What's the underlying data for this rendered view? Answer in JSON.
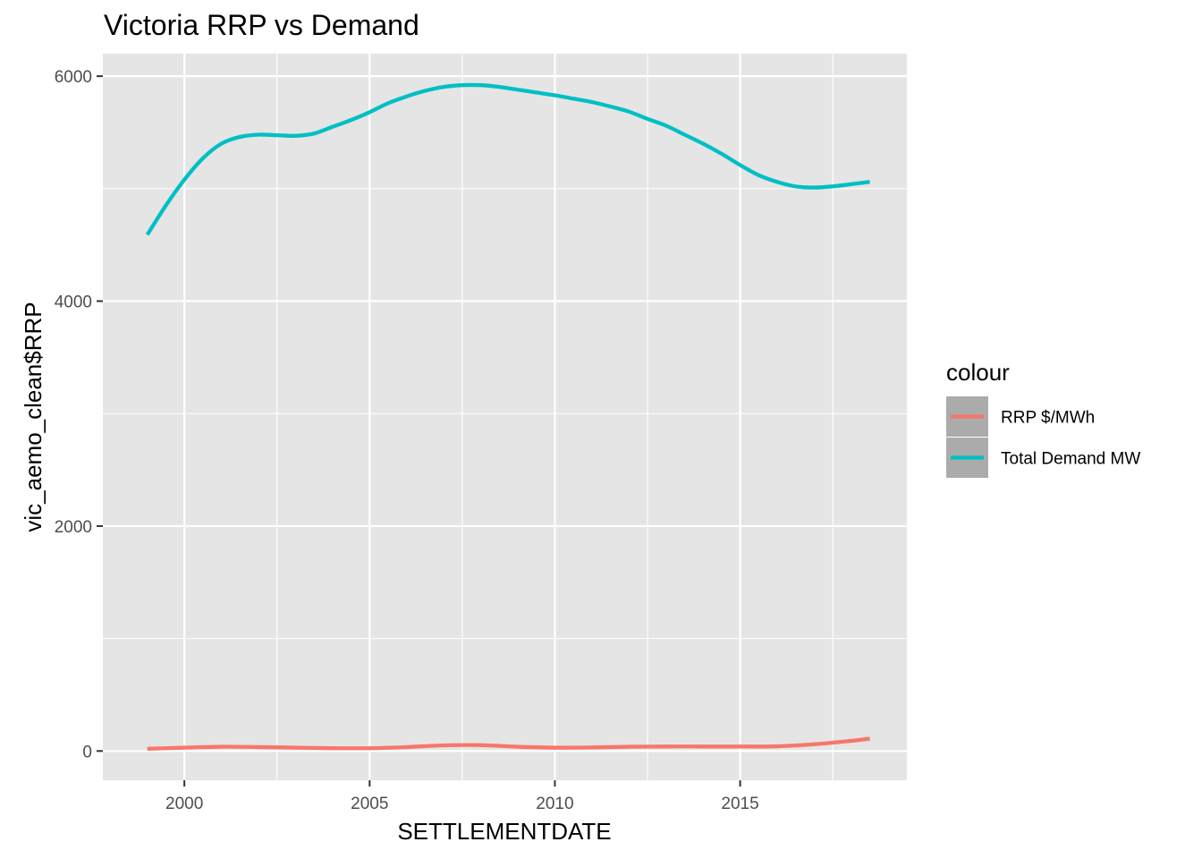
{
  "chart_data": {
    "type": "line",
    "title": "Victoria RRP vs Demand",
    "xlabel": "SETTLEMENTDATE",
    "ylabel": "vic_aemo_clean$RRP",
    "xlim": [
      1997.8,
      2019.5
    ],
    "ylim": [
      -260,
      6200
    ],
    "x_ticks": [
      2000,
      2005,
      2010,
      2015
    ],
    "x_tick_labels": [
      "2000",
      "2005",
      "2010",
      "2015"
    ],
    "x_minor_ticks": [
      2002.5,
      2007.5,
      2012.5,
      2017.5
    ],
    "y_ticks": [
      0,
      2000,
      4000,
      6000
    ],
    "y_tick_labels": [
      "0",
      "2000",
      "4000",
      "6000"
    ],
    "y_minor_ticks": [
      1000,
      3000,
      5000
    ],
    "grid": true,
    "panel_background": "#e5e5e5",
    "grid_color": "#ffffff",
    "legend": {
      "title": "colour",
      "position": "right",
      "key_background": "#ababab"
    },
    "series": [
      {
        "name": "RRP $/MWh",
        "color": "#f8766d",
        "x": [
          1999.0,
          2000.0,
          2001.0,
          2002.0,
          2003.0,
          2004.0,
          2005.0,
          2006.0,
          2007.0,
          2008.0,
          2009.0,
          2010.0,
          2011.0,
          2012.0,
          2013.0,
          2014.0,
          2015.0,
          2016.0,
          2017.0,
          2018.0,
          2018.5
        ],
        "y": [
          20,
          30,
          38,
          35,
          30,
          25,
          25,
          35,
          50,
          52,
          38,
          30,
          32,
          38,
          40,
          40,
          40,
          42,
          60,
          90,
          110
        ]
      },
      {
        "name": "Total Demand MW",
        "color": "#00bfc4",
        "x": [
          1999.0,
          1999.5,
          2000.0,
          2000.5,
          2001.0,
          2001.5,
          2002.0,
          2002.5,
          2003.0,
          2003.5,
          2004.0,
          2004.5,
          2005.0,
          2005.5,
          2006.0,
          2006.5,
          2007.0,
          2007.5,
          2008.0,
          2008.5,
          2009.0,
          2009.5,
          2010.0,
          2010.5,
          2011.0,
          2011.5,
          2012.0,
          2012.5,
          2013.0,
          2013.5,
          2014.0,
          2014.5,
          2015.0,
          2015.5,
          2016.0,
          2016.5,
          2017.0,
          2017.5,
          2018.0,
          2018.5
        ],
        "y": [
          4590,
          4850,
          5080,
          5270,
          5400,
          5460,
          5480,
          5475,
          5470,
          5490,
          5550,
          5610,
          5680,
          5760,
          5820,
          5870,
          5905,
          5920,
          5920,
          5905,
          5880,
          5855,
          5830,
          5800,
          5770,
          5730,
          5685,
          5620,
          5560,
          5480,
          5400,
          5310,
          5210,
          5120,
          5060,
          5020,
          5010,
          5020,
          5040,
          5060
        ]
      }
    ]
  }
}
